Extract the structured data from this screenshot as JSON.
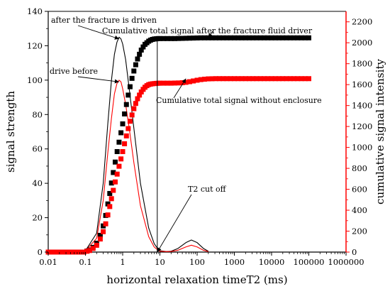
{
  "chart_data": {
    "type": "line",
    "xlabel": "horizontal relaxation timeT2 (ms)",
    "ylabel": "signal strength",
    "y2label": "cumulative signal intensity",
    "x_scale": "log",
    "xlim": [
      0.01,
      1000000
    ],
    "ylim": [
      0,
      140
    ],
    "y2lim": [
      0,
      2300
    ],
    "x_ticks": [
      0.01,
      0.1,
      1,
      10,
      100,
      1000,
      10000,
      100000,
      1000000
    ],
    "x_tick_labels": [
      "0.01",
      "0.1",
      "1",
      "10",
      "100",
      "1000",
      "10000",
      "100000",
      "1000000"
    ],
    "y_ticks": [
      0,
      20,
      40,
      60,
      80,
      100,
      120,
      140
    ],
    "y2_ticks": [
      0,
      200,
      400,
      600,
      800,
      1000,
      1200,
      1400,
      1600,
      1800,
      2000,
      2200
    ],
    "colors": {
      "after": "#000000",
      "before": "#ff0000",
      "right_axis": "#ff0000"
    },
    "series": [
      {
        "name": "after the fracture is driven",
        "axis": "left",
        "style": "line",
        "color": "#000000",
        "x": [
          0.01,
          0.05,
          0.1,
          0.2,
          0.3,
          0.4,
          0.5,
          0.6,
          0.7,
          0.8,
          0.9,
          1.0,
          1.2,
          1.5,
          2,
          3,
          5,
          7,
          9,
          10,
          15,
          20,
          30,
          50,
          70,
          100,
          150,
          200
        ],
        "y": [
          0.5,
          0.5,
          0.8,
          11,
          40,
          75,
          100,
          115,
          122,
          125,
          124,
          121,
          112,
          95,
          72,
          40,
          14,
          5,
          1.5,
          0.8,
          0.3,
          0.5,
          2,
          5.5,
          7,
          5.5,
          2,
          0.5
        ]
      },
      {
        "name": "drive before",
        "axis": "left",
        "style": "line",
        "color": "#ff0000",
        "x": [
          0.01,
          0.05,
          0.1,
          0.2,
          0.3,
          0.4,
          0.5,
          0.6,
          0.7,
          0.8,
          0.9,
          1.0,
          1.2,
          1.5,
          2,
          3,
          5,
          7,
          9,
          10,
          15,
          20,
          30,
          50,
          70,
          100,
          150,
          200
        ],
        "y": [
          0.5,
          0.5,
          0.8,
          8,
          30,
          58,
          78,
          92,
          98,
          100,
          99,
          95,
          86,
          72,
          52,
          27,
          9,
          3,
          1,
          0.5,
          0.3,
          0.4,
          1,
          3,
          4,
          3,
          1,
          0.3
        ]
      },
      {
        "name": "Cumulative total signal after the fracture fluid driver",
        "axis": "right",
        "style": "square-markers",
        "color": "#000000",
        "x": [
          0.01,
          0.013,
          0.017,
          0.022,
          0.028,
          0.036,
          0.046,
          0.06,
          0.075,
          0.09,
          0.11,
          0.13,
          0.16,
          0.2,
          0.25,
          0.3,
          0.35,
          0.4,
          0.45,
          0.5,
          0.56,
          0.63,
          0.71,
          0.8,
          0.9,
          1.0,
          1.12,
          1.26,
          1.41,
          1.58,
          1.78,
          2.0,
          2.24,
          2.51,
          2.82,
          3.16,
          3.55,
          3.98,
          4.47,
          5.01,
          5.62,
          6.31,
          7.08,
          7.94,
          8.91,
          10,
          12.6,
          15.8,
          20,
          25,
          31.6,
          40,
          50,
          63,
          79,
          100,
          126,
          158,
          200,
          251,
          316,
          398,
          501,
          631,
          794,
          1000,
          1259,
          1585,
          1995,
          2512,
          3162,
          3981,
          5012,
          6310,
          7943,
          10000,
          12589,
          15849,
          19953,
          25119,
          31623,
          39811,
          50119,
          63096,
          79433,
          100000
        ],
        "y": [
          0,
          0,
          0,
          0,
          0,
          0,
          0,
          0,
          0,
          0,
          10,
          20,
          45,
          85,
          160,
          250,
          350,
          460,
          560,
          660,
          760,
          860,
          960,
          1050,
          1140,
          1225,
          1320,
          1410,
          1500,
          1580,
          1660,
          1730,
          1790,
          1845,
          1890,
          1930,
          1960,
          1985,
          2000,
          2015,
          2025,
          2032,
          2036,
          2038,
          2040,
          2040,
          2040,
          2040,
          2040,
          2040,
          2041,
          2042,
          2043,
          2044,
          2045,
          2046,
          2047,
          2047,
          2047,
          2047,
          2047,
          2047,
          2047,
          2047,
          2047,
          2047,
          2047,
          2047,
          2047,
          2047,
          2047,
          2047,
          2047,
          2047,
          2047,
          2047,
          2047,
          2047,
          2047,
          2047,
          2047,
          2047,
          2047,
          2047,
          2047,
          2047
        ]
      },
      {
        "name": "Cumulative total signal without enclosure",
        "axis": "right",
        "style": "square-markers",
        "color": "#ff0000",
        "x": [
          0.01,
          0.013,
          0.017,
          0.022,
          0.028,
          0.036,
          0.046,
          0.06,
          0.075,
          0.09,
          0.11,
          0.13,
          0.16,
          0.2,
          0.25,
          0.3,
          0.35,
          0.4,
          0.45,
          0.5,
          0.56,
          0.63,
          0.71,
          0.8,
          0.9,
          1.0,
          1.12,
          1.26,
          1.41,
          1.58,
          1.78,
          2.0,
          2.24,
          2.51,
          2.82,
          3.16,
          3.55,
          3.98,
          4.47,
          5.01,
          5.62,
          6.31,
          7.08,
          7.94,
          8.91,
          10,
          12.6,
          15.8,
          20,
          25,
          31.6,
          40,
          50,
          63,
          79,
          100,
          126,
          158,
          200,
          251,
          316,
          398,
          501,
          631,
          794,
          1000,
          1259,
          1585,
          1995,
          2512,
          3162,
          3981,
          5012,
          6310,
          7943,
          10000,
          12589,
          15849,
          19953,
          25119,
          31623,
          39811,
          50119,
          63096,
          79433,
          100000
        ],
        "y": [
          0,
          0,
          0,
          0,
          0,
          0,
          0,
          0,
          0,
          0,
          8,
          15,
          35,
          65,
          125,
          195,
          270,
          355,
          435,
          510,
          590,
          670,
          745,
          820,
          890,
          960,
          1035,
          1110,
          1180,
          1250,
          1310,
          1370,
          1420,
          1465,
          1500,
          1530,
          1555,
          1575,
          1590,
          1600,
          1605,
          1608,
          1610,
          1612,
          1613,
          1614,
          1614,
          1614,
          1614,
          1615,
          1616,
          1618,
          1622,
          1628,
          1635,
          1642,
          1648,
          1652,
          1655,
          1656,
          1657,
          1657,
          1657,
          1657,
          1657,
          1657,
          1657,
          1657,
          1657,
          1657,
          1657,
          1657,
          1657,
          1657,
          1657,
          1657,
          1657,
          1657,
          1657,
          1657,
          1657,
          1657,
          1657,
          1657,
          1657,
          1657
        ]
      }
    ],
    "vertical_line": {
      "x": 8.5
    },
    "annotations": [
      {
        "text": "after the fracture is driven",
        "target": {
          "x": 0.8,
          "y": 124,
          "axis": "left"
        }
      },
      {
        "text": "Cumulative total signal after the fracture fluid driver",
        "target": {
          "x": 200,
          "y": 2047,
          "axis": "right"
        }
      },
      {
        "text": "drive before",
        "target": {
          "x": 0.8,
          "y": 99,
          "axis": "left"
        }
      },
      {
        "text": "Cumulative total signal without enclosure",
        "target": {
          "x": 50,
          "y": 1657,
          "axis": "right"
        }
      },
      {
        "text": "T2 cut off",
        "target": {
          "x": 8.5,
          "y": 0,
          "axis": "left"
        }
      }
    ]
  }
}
